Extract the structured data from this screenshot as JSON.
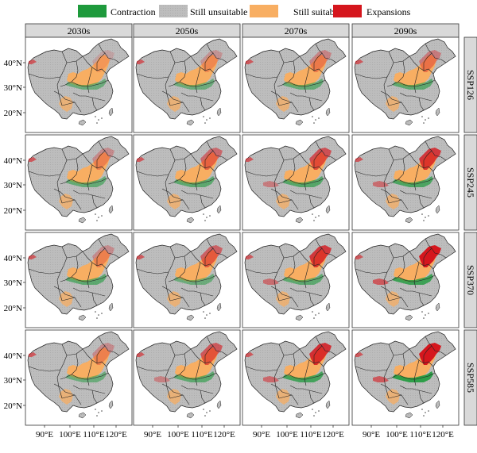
{
  "legend": {
    "items": [
      {
        "label": "Contraction",
        "color": "#1e9a3c"
      },
      {
        "label": "Still unsuitable",
        "color": "#bfbfbf"
      },
      {
        "label": "Still suitable",
        "color": "#f8ae62"
      },
      {
        "label": "Expansions",
        "color": "#d5161d"
      }
    ]
  },
  "columns": [
    "2030s",
    "2050s",
    "2070s",
    "2090s"
  ],
  "rows": [
    "SSP126",
    "SSP245",
    "SSP370",
    "SSP585"
  ],
  "y_axis_labels": [
    "40°N",
    "30°N",
    "20°N"
  ],
  "x_axis_labels": [
    "90°E",
    "100°E",
    "110°E",
    "120°E"
  ],
  "intensity": {
    "expansion": [
      [
        0.15,
        0.25,
        0.35,
        0.4
      ],
      [
        0.3,
        0.5,
        0.65,
        0.8
      ],
      [
        0.3,
        0.55,
        0.8,
        1.0
      ],
      [
        0.3,
        0.6,
        0.85,
        1.0
      ]
    ],
    "contraction": [
      [
        0.5,
        0.5,
        0.55,
        0.6
      ],
      [
        0.55,
        0.6,
        0.65,
        0.7
      ],
      [
        0.6,
        0.5,
        0.6,
        0.8
      ],
      [
        0.5,
        0.6,
        0.75,
        0.9
      ]
    ]
  }
}
